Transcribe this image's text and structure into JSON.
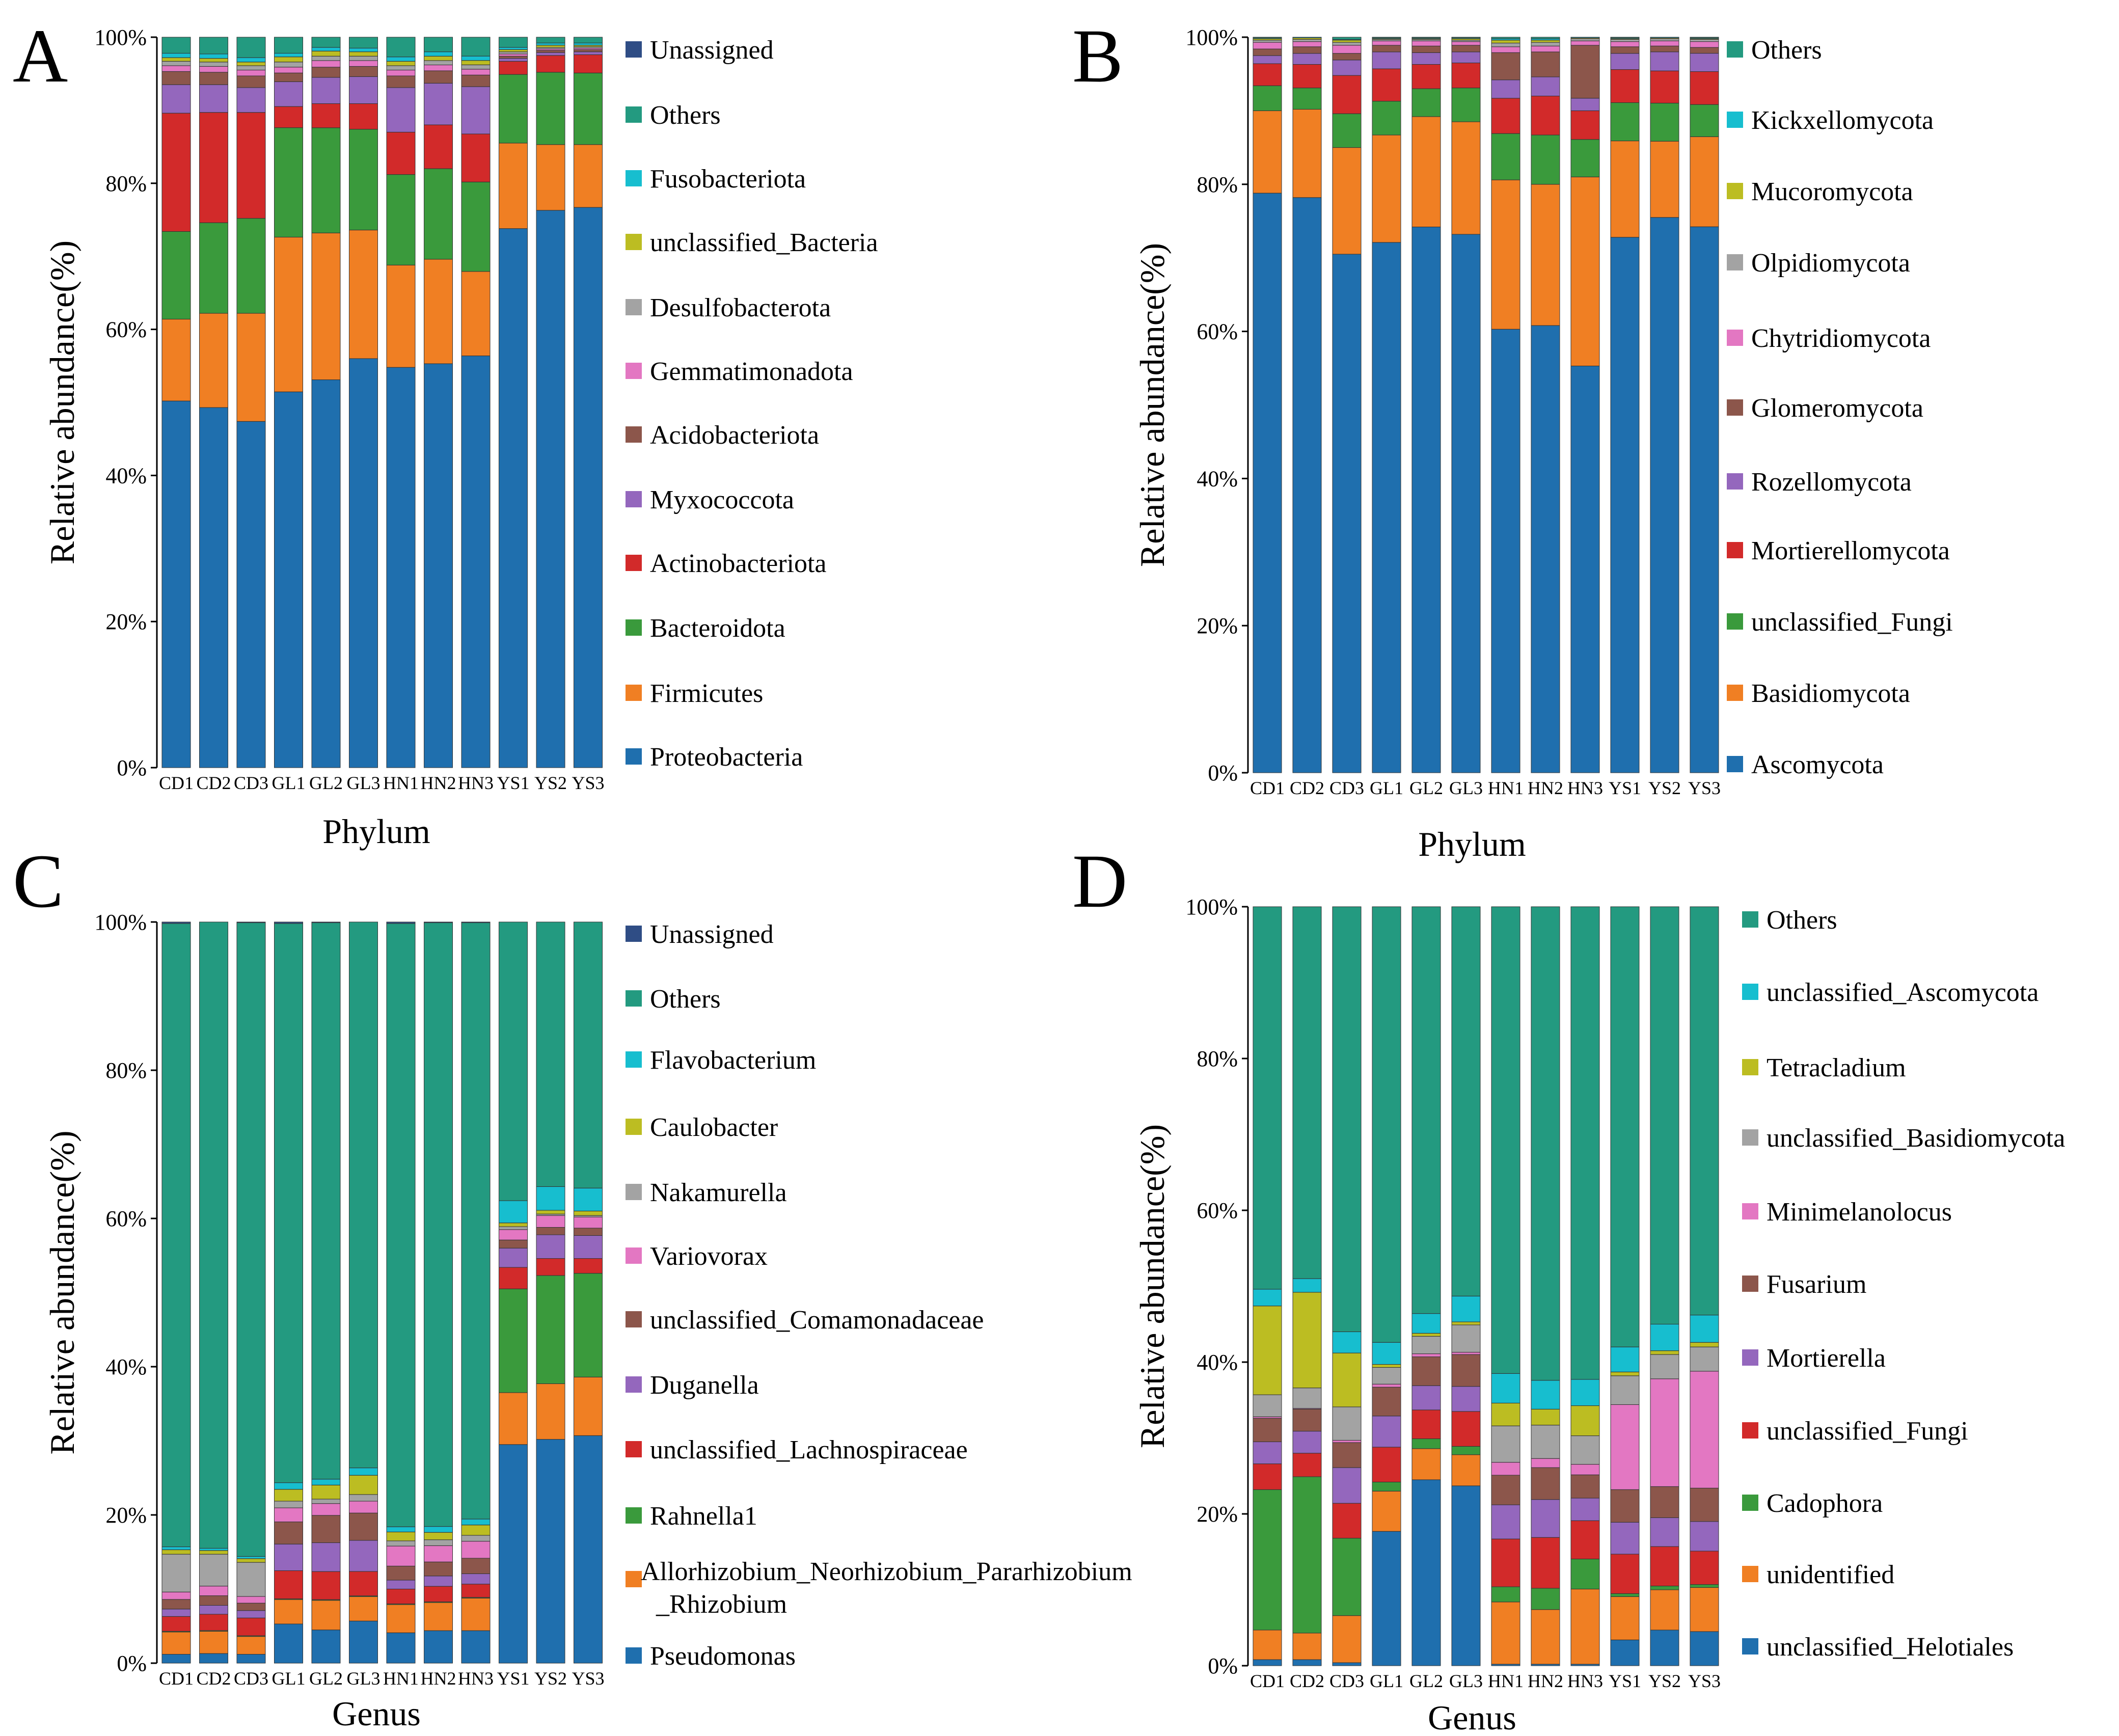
{
  "figure": {
    "panels": [
      "A",
      "B",
      "C",
      "D"
    ]
  },
  "chart_data": [
    {
      "panel": "A",
      "type": "bar",
      "stacked": true,
      "title": "",
      "xlabel": "Phylum",
      "ylabel": "Relative abundance(%)",
      "ylim": [
        0,
        100
      ],
      "yticks": [
        "0%",
        "20%",
        "40%",
        "60%",
        "80%",
        "100%"
      ],
      "categories": [
        "CD1",
        "CD2",
        "CD3",
        "GL1",
        "GL2",
        "GL3",
        "HN1",
        "HN2",
        "HN3",
        "YS1",
        "YS2",
        "YS3"
      ],
      "series": [
        {
          "name": "Proteobacteria",
          "color": "#1f6fae",
          "values": [
            50.2,
            49.3,
            47.4,
            51.5,
            53.1,
            56.0,
            54.8,
            55.3,
            56.6,
            73.8,
            76.3,
            76.7
          ]
        },
        {
          "name": "Firmicutes",
          "color": "#f07f23",
          "values": [
            11.2,
            12.9,
            14.8,
            21.2,
            20.1,
            17.6,
            14.0,
            14.3,
            11.6,
            11.7,
            9.0,
            8.6
          ]
        },
        {
          "name": "Bacteroidota",
          "color": "#3a9a3c",
          "values": [
            12.0,
            12.4,
            13.0,
            15.0,
            14.4,
            13.8,
            12.4,
            12.4,
            12.3,
            9.4,
            9.9,
            9.8
          ]
        },
        {
          "name": "Actinobacteriota",
          "color": "#d22a2a",
          "values": [
            16.2,
            15.1,
            14.5,
            2.9,
            3.3,
            3.5,
            5.8,
            6.0,
            6.6,
            1.8,
            2.3,
            2.5
          ]
        },
        {
          "name": "Myxococcota",
          "color": "#9467bd",
          "values": [
            3.9,
            3.8,
            3.4,
            3.4,
            3.6,
            3.7,
            6.1,
            5.7,
            6.5,
            0.4,
            0.4,
            0.4
          ]
        },
        {
          "name": "Acidobacteriota",
          "color": "#8c564b",
          "values": [
            1.8,
            1.7,
            1.6,
            1.2,
            1.4,
            1.4,
            1.6,
            1.7,
            1.6,
            0.3,
            0.3,
            0.3
          ]
        },
        {
          "name": "Gemmatimonadota",
          "color": "#e377c2",
          "values": [
            0.8,
            0.8,
            0.8,
            0.8,
            0.9,
            0.8,
            0.8,
            0.8,
            0.8,
            0.3,
            0.2,
            0.2
          ]
        },
        {
          "name": "Desulfobacterota",
          "color": "#a3a3a3",
          "values": [
            0.6,
            0.6,
            0.6,
            0.7,
            0.6,
            0.6,
            0.6,
            0.6,
            0.6,
            0.3,
            0.2,
            0.2
          ]
        },
        {
          "name": "unclassified_Bacteria",
          "color": "#bcbd22",
          "values": [
            0.5,
            0.5,
            0.5,
            0.7,
            0.7,
            0.6,
            0.6,
            0.6,
            0.6,
            0.3,
            0.3,
            0.2
          ]
        },
        {
          "name": "Fusobacteriota",
          "color": "#17becf",
          "values": [
            0.6,
            0.6,
            0.6,
            0.5,
            0.5,
            0.5,
            0.6,
            0.6,
            0.6,
            0.3,
            0.3,
            0.3
          ]
        },
        {
          "name": "Others",
          "color": "#239a80",
          "values": [
            2.2,
            2.3,
            2.8,
            2.2,
            1.4,
            1.5,
            2.7,
            2.0,
            2.6,
            1.4,
            0.8,
            0.8
          ]
        },
        {
          "name": "Unassigned",
          "color": "#2f4d85",
          "values": [
            0,
            0,
            0,
            0,
            0,
            0,
            0,
            0,
            0,
            0,
            0,
            0
          ]
        }
      ]
    },
    {
      "panel": "B",
      "type": "bar",
      "stacked": true,
      "title": "",
      "xlabel": "Phylum",
      "ylabel": "Relative abundance(%)",
      "ylim": [
        0,
        100
      ],
      "yticks": [
        "0%",
        "20%",
        "40%",
        "60%",
        "80%",
        "100%"
      ],
      "categories": [
        "CD1",
        "CD2",
        "CD3",
        "GL1",
        "GL2",
        "GL3",
        "HN1",
        "HN2",
        "HN3",
        "YS1",
        "YS2",
        "YS3"
      ],
      "series": [
        {
          "name": "Ascomycota",
          "color": "#1f6fae",
          "values": [
            78.8,
            78.2,
            70.5,
            72.1,
            74.2,
            73.2,
            60.3,
            60.8,
            55.3,
            72.8,
            75.8,
            74.6
          ]
        },
        {
          "name": "Basidiomycota",
          "color": "#f07f23",
          "values": [
            11.2,
            12.0,
            14.5,
            14.6,
            15.0,
            15.3,
            20.3,
            19.2,
            25.7,
            13.1,
            10.4,
            12.3
          ]
        },
        {
          "name": "unclassified_Fungi",
          "color": "#3a9a3c",
          "values": [
            3.4,
            2.9,
            4.6,
            4.6,
            3.8,
            4.6,
            6.3,
            6.7,
            5.1,
            5.2,
            5.2,
            4.4
          ]
        },
        {
          "name": "Mortierellomycota",
          "color": "#d22a2a",
          "values": [
            3.0,
            3.2,
            5.2,
            4.4,
            3.3,
            3.4,
            4.8,
            5.3,
            3.9,
            4.5,
            4.4,
            4.5
          ]
        },
        {
          "name": "Rozellomycota",
          "color": "#9467bd",
          "values": [
            1.1,
            1.5,
            2.1,
            2.3,
            1.6,
            1.5,
            2.5,
            2.6,
            1.7,
            2.2,
            2.6,
            2.5
          ]
        },
        {
          "name": "Glomeromycota",
          "color": "#8c564b",
          "values": [
            0.9,
            0.9,
            0.9,
            0.9,
            0.9,
            0.9,
            3.7,
            3.4,
            7.2,
            0.9,
            0.8,
            0.8
          ]
        },
        {
          "name": "Chytridiomycota",
          "color": "#e377c2",
          "values": [
            0.9,
            0.7,
            1.1,
            0.6,
            0.7,
            0.5,
            0.8,
            0.8,
            0.6,
            0.7,
            0.7,
            0.8
          ]
        },
        {
          "name": "Olpidiomycota",
          "color": "#a3a3a3",
          "values": [
            0.3,
            0.3,
            0.4,
            0.2,
            0.2,
            0.2,
            0.5,
            0.5,
            0.3,
            0.3,
            0.3,
            0.3
          ]
        },
        {
          "name": "Mucoromycota",
          "color": "#bcbd22",
          "values": [
            0.2,
            0.2,
            0.3,
            0.1,
            0.1,
            0.2,
            0.4,
            0.3,
            0.1,
            0.1,
            0.1,
            0.1
          ]
        },
        {
          "name": "Kickxellomycota",
          "color": "#17becf",
          "values": [
            0.1,
            0.1,
            0.1,
            0.1,
            0.1,
            0.1,
            0.2,
            0.2,
            0.1,
            0.1,
            0.1,
            0.1
          ]
        },
        {
          "name": "Others",
          "color": "#239a80",
          "values": [
            0.1,
            0.0,
            0.3,
            0.1,
            0.1,
            0.1,
            0.2,
            0.2,
            0.0,
            0.1,
            0.0,
            0.1
          ]
        }
      ]
    },
    {
      "panel": "C",
      "type": "bar",
      "stacked": true,
      "title": "",
      "xlabel": "Genus",
      "ylabel": "Relative abundance(%)",
      "ylim": [
        0,
        100
      ],
      "yticks": [
        "0%",
        "20%",
        "40%",
        "60%",
        "80%",
        "100%"
      ],
      "categories": [
        "CD1",
        "CD2",
        "CD3",
        "GL1",
        "GL2",
        "GL3",
        "HN1",
        "HN2",
        "HN3",
        "YS1",
        "YS2",
        "YS3"
      ],
      "series": [
        {
          "name": "Pseudomonas",
          "color": "#1f6fae",
          "values": [
            1.2,
            1.3,
            1.2,
            5.3,
            4.5,
            5.7,
            4.1,
            4.4,
            4.4,
            29.5,
            30.2,
            30.7
          ]
        },
        {
          "name": "Allorhizobium_Neorhizobium_Pararhizobium_Rhizobium",
          "color": "#f07f23",
          "values": [
            3.0,
            3.0,
            2.4,
            3.3,
            4.0,
            3.3,
            3.8,
            3.8,
            4.4,
            7.0,
            7.5,
            7.9
          ]
        },
        {
          "name": "Rahnella1",
          "color": "#3a9a3c",
          "values": [
            0.1,
            0.1,
            0.1,
            0.1,
            0.1,
            0.1,
            0.1,
            0.1,
            0.1,
            14.0,
            14.6,
            14.0
          ]
        },
        {
          "name": "unclassified_Lachnospiraceae",
          "color": "#d22a2a",
          "values": [
            2.0,
            2.2,
            2.4,
            3.8,
            3.8,
            3.3,
            2.0,
            2.1,
            1.8,
            2.9,
            2.3,
            2.0
          ]
        },
        {
          "name": "Duganella",
          "color": "#9467bd",
          "values": [
            1.0,
            1.2,
            1.0,
            3.6,
            3.9,
            4.2,
            1.2,
            1.4,
            1.4,
            2.6,
            3.2,
            3.1
          ]
        },
        {
          "name": "unclassified_Comamonadaceae",
          "color": "#8c564b",
          "values": [
            1.3,
            1.3,
            1.0,
            3.0,
            3.7,
            3.7,
            1.9,
            1.9,
            2.1,
            1.1,
            1.0,
            1.0
          ]
        },
        {
          "name": "Variovorax",
          "color": "#e377c2",
          "values": [
            1.0,
            1.3,
            0.9,
            1.9,
            1.6,
            1.6,
            2.7,
            2.2,
            2.3,
            1.4,
            1.6,
            1.5
          ]
        },
        {
          "name": "Nakamurella",
          "color": "#a3a3a3",
          "values": [
            5.1,
            4.3,
            4.6,
            0.9,
            0.6,
            0.9,
            0.7,
            0.8,
            0.8,
            0.4,
            0.2,
            0.2
          ]
        },
        {
          "name": "Caulobacter",
          "color": "#bcbd22",
          "values": [
            0.6,
            0.5,
            0.5,
            1.6,
            1.9,
            2.6,
            1.2,
            1.0,
            1.4,
            0.5,
            0.5,
            0.6
          ]
        },
        {
          "name": "Flavobacterium",
          "color": "#17becf",
          "values": [
            0.4,
            0.3,
            0.3,
            0.9,
            0.8,
            1.0,
            0.7,
            0.8,
            0.8,
            3.0,
            3.2,
            3.1
          ]
        },
        {
          "name": "Others",
          "color": "#239a80",
          "values": [
            84.1,
            84.5,
            85.5,
            75.6,
            75.3,
            73.8,
            81.4,
            81.7,
            80.7,
            37.6,
            35.7,
            35.9
          ]
        },
        {
          "name": "Unassigned",
          "color": "#2f4d85",
          "values": [
            0.2,
            0.0,
            0.1,
            0.2,
            0.1,
            0.0,
            0.2,
            0.1,
            0.1,
            0.0,
            0.0,
            0.0
          ]
        }
      ]
    },
    {
      "panel": "D",
      "type": "bar",
      "stacked": true,
      "title": "",
      "xlabel": "Genus",
      "ylabel": "Relative abundance(%)",
      "ylim": [
        0,
        100
      ],
      "yticks": [
        "0%",
        "20%",
        "40%",
        "60%",
        "80%",
        "100%"
      ],
      "categories": [
        "CD1",
        "CD2",
        "CD3",
        "GL1",
        "GL2",
        "GL3",
        "HN1",
        "HN2",
        "HN3",
        "YS1",
        "YS2",
        "YS3"
      ],
      "series": [
        {
          "name": "unclassified_Helotiales",
          "color": "#1f6fae",
          "values": [
            0.8,
            0.8,
            0.4,
            17.7,
            24.5,
            23.7,
            0.2,
            0.2,
            0.2,
            3.4,
            4.7,
            4.5
          ]
        },
        {
          "name": "unidentified",
          "color": "#f07f23",
          "values": [
            3.9,
            3.5,
            6.2,
            5.3,
            4.1,
            4.1,
            8.2,
            7.2,
            10.0,
            5.7,
            5.3,
            5.8
          ]
        },
        {
          "name": "Cadophora",
          "color": "#3a9a3c",
          "values": [
            18.5,
            20.6,
            10.2,
            1.2,
            1.3,
            1.1,
            2.0,
            2.8,
            4.0,
            0.4,
            0.5,
            0.4
          ]
        },
        {
          "name": "unclassified_Fungi",
          "color": "#d22a2a",
          "values": [
            3.4,
            3.1,
            4.6,
            4.6,
            3.8,
            4.6,
            6.3,
            6.7,
            5.1,
            5.2,
            5.2,
            4.4
          ]
        },
        {
          "name": "Mortierella",
          "color": "#9467bd",
          "values": [
            2.9,
            2.9,
            4.7,
            4.1,
            3.2,
            3.3,
            4.5,
            5.0,
            3.0,
            4.2,
            3.8,
            3.9
          ]
        },
        {
          "name": "Fusarium",
          "color": "#8c564b",
          "values": [
            3.1,
            2.9,
            3.3,
            3.8,
            3.8,
            4.2,
            3.9,
            4.2,
            3.1,
            4.3,
            4.1,
            4.4
          ]
        },
        {
          "name": "Minimelanolocus",
          "color": "#e377c2",
          "values": [
            0.2,
            0.1,
            0.3,
            0.4,
            0.4,
            0.3,
            1.7,
            1.2,
            1.4,
            11.2,
            14.2,
            15.4
          ]
        },
        {
          "name": "unclassified_Basidiomycota",
          "color": "#a3a3a3",
          "values": [
            2.9,
            2.7,
            4.4,
            2.2,
            2.3,
            3.6,
            4.8,
            4.4,
            3.8,
            3.8,
            3.2,
            3.2
          ]
        },
        {
          "name": "Tetracladium",
          "color": "#bcbd22",
          "values": [
            11.7,
            12.6,
            7.1,
            0.4,
            0.4,
            0.4,
            3.0,
            2.1,
            4.0,
            0.5,
            0.5,
            0.6
          ]
        },
        {
          "name": "unclassified_Ascomycota",
          "color": "#17becf",
          "values": [
            2.2,
            1.8,
            2.8,
            2.9,
            2.6,
            3.4,
            3.9,
            3.8,
            3.5,
            3.3,
            3.5,
            3.6
          ]
        },
        {
          "name": "Others",
          "color": "#239a80",
          "values": [
            50.4,
            49.0,
            56.0,
            57.4,
            53.6,
            51.3,
            61.5,
            62.4,
            62.9,
            58.0,
            55.0,
            53.8
          ]
        }
      ]
    }
  ]
}
